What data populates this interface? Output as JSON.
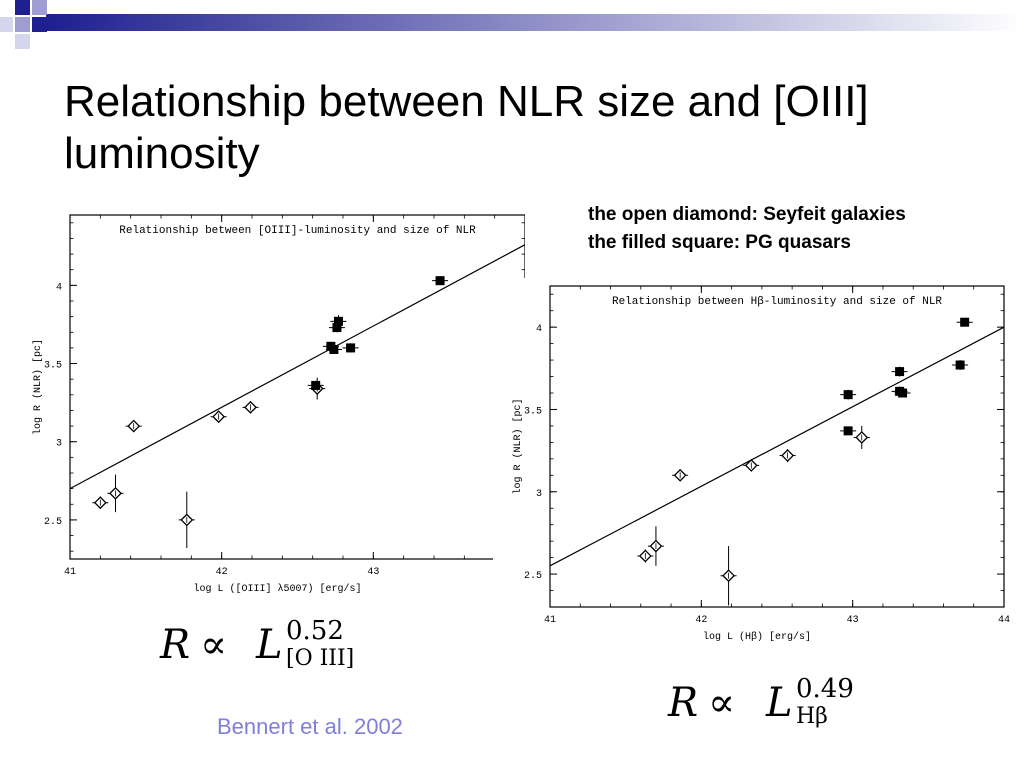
{
  "slide": {
    "title": "Relationship between NLR size and [OIII] luminosity",
    "legend": [
      "the open diamond: Seyfeit galaxies",
      "the filled square: PG quasars"
    ],
    "citation": "Bennert et al. 2002",
    "accent_color": "#1f1f8f",
    "citation_color": "#7f7fd9"
  },
  "formulas": [
    {
      "lhs": "R",
      "op": "∝",
      "base": "L",
      "exponent": "0.52",
      "subscript": "[O III]"
    },
    {
      "lhs": "R",
      "op": "∝",
      "base": "L",
      "exponent": "0.49",
      "subscript": "Hβ"
    }
  ],
  "chart_data": [
    {
      "type": "scatter",
      "title": "Relationship between [OIII]-luminosity and size of NLR",
      "xlabel": "log L ([OIII] λ5007) [erg/s]",
      "ylabel": "log R (NLR) [pc]",
      "xlim": [
        41,
        44
      ],
      "ylim": [
        2.25,
        4.45
      ],
      "xticks": [
        "41",
        "42",
        "43"
      ],
      "xtick_values": [
        41,
        42,
        43
      ],
      "yticks": [
        "2.5",
        "3",
        "3.5",
        "4"
      ],
      "ytick_values": [
        2.5,
        3,
        3.5,
        4
      ],
      "fit_line": {
        "slope": 0.52,
        "x": [
          41,
          44
        ],
        "y": [
          2.7,
          4.26
        ]
      },
      "series": [
        {
          "marker": "open-diamond",
          "points": [
            {
              "x": 41.2,
              "y": 2.61,
              "yerr": 0.04
            },
            {
              "x": 41.3,
              "y": 2.67,
              "yerr": 0.12
            },
            {
              "x": 41.42,
              "y": 3.1,
              "yerr": 0.0
            },
            {
              "x": 41.77,
              "y": 2.5,
              "yerr": 0.18
            },
            {
              "x": 41.98,
              "y": 3.16,
              "yerr": 0.02
            },
            {
              "x": 42.19,
              "y": 3.22,
              "yerr": 0.04
            },
            {
              "x": 42.63,
              "y": 3.34,
              "yerr": 0.07
            }
          ]
        },
        {
          "marker": "filled-square",
          "points": [
            {
              "x": 42.62,
              "y": 3.36,
              "yerr": 0.03
            },
            {
              "x": 42.72,
              "y": 3.61,
              "yerr": 0.03
            },
            {
              "x": 42.74,
              "y": 3.59,
              "yerr": 0.02
            },
            {
              "x": 42.76,
              "y": 3.73,
              "yerr": 0.03
            },
            {
              "x": 42.77,
              "y": 3.77,
              "yerr": 0.04
            },
            {
              "x": 42.85,
              "y": 3.6,
              "yerr": 0.03
            },
            {
              "x": 43.44,
              "y": 4.03,
              "yerr": 0.02
            }
          ]
        }
      ]
    },
    {
      "type": "scatter",
      "title": "Relationship between Hβ-luminosity and size of NLR",
      "xlabel": "log L (Hβ) [erg/s]",
      "ylabel": "log R (NLR) [pc]",
      "xlim": [
        41,
        44
      ],
      "ylim": [
        2.3,
        4.25
      ],
      "xticks": [
        "41",
        "42",
        "43",
        "44"
      ],
      "xtick_values": [
        41,
        42,
        43,
        44
      ],
      "yticks": [
        "2.5",
        "3",
        "3.5",
        "4"
      ],
      "ytick_values": [
        2.5,
        3,
        3.5,
        4
      ],
      "fit_line": {
        "slope": 0.49,
        "x": [
          41,
          44
        ],
        "y": [
          2.55,
          4.0
        ]
      },
      "series": [
        {
          "marker": "open-diamond",
          "points": [
            {
              "x": 41.63,
              "y": 2.61,
              "yerr": 0.04
            },
            {
              "x": 41.7,
              "y": 2.67,
              "yerr": 0.12
            },
            {
              "x": 41.86,
              "y": 3.1,
              "yerr": 0.0
            },
            {
              "x": 42.18,
              "y": 2.49,
              "yerr": 0.18
            },
            {
              "x": 42.33,
              "y": 3.16,
              "yerr": 0.02
            },
            {
              "x": 42.57,
              "y": 3.22,
              "yerr": 0.04
            },
            {
              "x": 43.06,
              "y": 3.33,
              "yerr": 0.07
            }
          ]
        },
        {
          "marker": "filled-square",
          "points": [
            {
              "x": 42.97,
              "y": 3.59,
              "yerr": 0.03
            },
            {
              "x": 42.97,
              "y": 3.37,
              "yerr": 0.02
            },
            {
              "x": 43.31,
              "y": 3.73,
              "yerr": 0.03
            },
            {
              "x": 43.31,
              "y": 3.61,
              "yerr": 0.03
            },
            {
              "x": 43.33,
              "y": 3.6,
              "yerr": 0.02
            },
            {
              "x": 43.71,
              "y": 3.77,
              "yerr": 0.03
            },
            {
              "x": 43.74,
              "y": 4.03,
              "yerr": 0.02
            }
          ]
        }
      ]
    }
  ]
}
